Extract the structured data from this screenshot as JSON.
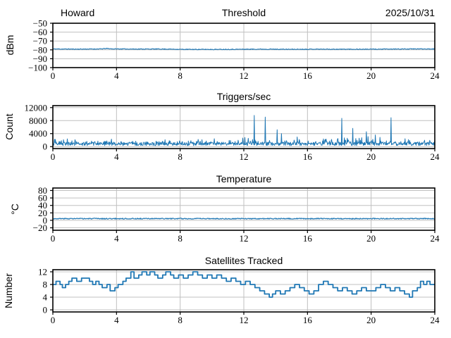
{
  "figure": {
    "background": "#ffffff",
    "line_color": "#1f77b4",
    "grid_color": "#c0c0c0",
    "spine_color": "#000000",
    "text_color": "#000000"
  },
  "header": {
    "left_label": "Howard",
    "center_title": "Threshold",
    "right_date": "2025/10/31"
  },
  "chart_data": [
    {
      "type": "line",
      "title": "Threshold",
      "title_left": "Howard",
      "title_right": "2025/10/31",
      "xlabel": "",
      "ylabel": "dBm",
      "xlim": [
        0,
        24
      ],
      "ylim": [
        -100,
        -50
      ],
      "xticks": [
        0,
        4,
        8,
        12,
        16,
        20,
        24
      ],
      "xticklabels": [
        "0",
        "4",
        "8",
        "12",
        "16",
        "20",
        "24"
      ],
      "yticks": [
        -50,
        -60,
        -70,
        -80,
        -90,
        -100
      ],
      "yticklabels": [
        "−50",
        "−60",
        "−70",
        "−80",
        "−90",
        "−100"
      ],
      "grid": true,
      "series": {
        "kind": "noisy-line",
        "description": "noise threshold hovering near -79 dBm all day",
        "noise_amplitude": 0.45,
        "baseline": [
          [
            0,
            -79.0
          ],
          [
            1.5,
            -79.2
          ],
          [
            3.0,
            -79.0
          ],
          [
            3.4,
            -78.5
          ],
          [
            3.7,
            -78.9
          ],
          [
            5,
            -79.1
          ],
          [
            7,
            -79.1
          ],
          [
            8.3,
            -79.5
          ],
          [
            10,
            -79.5
          ],
          [
            11.5,
            -79.4
          ],
          [
            13,
            -79.2
          ],
          [
            15,
            -79.4
          ],
          [
            16.5,
            -79.2
          ],
          [
            18,
            -79.3
          ],
          [
            19.5,
            -79.3
          ],
          [
            21,
            -79.2
          ],
          [
            22.5,
            -79.0
          ],
          [
            24,
            -78.9
          ]
        ]
      }
    },
    {
      "type": "line",
      "title": "Triggers/sec",
      "xlabel": "",
      "ylabel": "Count",
      "xlim": [
        0,
        24
      ],
      "ylim": [
        -600,
        12600
      ],
      "xticks": [
        0,
        4,
        8,
        12,
        16,
        20,
        24
      ],
      "xticklabels": [
        "0",
        "4",
        "8",
        "12",
        "16",
        "20",
        "24"
      ],
      "yticks": [
        0,
        4000,
        8000,
        12000
      ],
      "yticklabels": [
        "0",
        "4000",
        "8000",
        "12000"
      ],
      "grid": true,
      "series": {
        "kind": "noisy-bursty",
        "description": "trigger rate mostly 300-2500 counts with occasional bursts, busier after hour 11",
        "base_range": [
          300,
          1400
        ],
        "burst_probability": 0.3,
        "burst_extra_before_11h": 1700,
        "burst_extra_after_11h": 2500,
        "spikes": [
          [
            12.65,
            9600
          ],
          [
            13.35,
            9100
          ],
          [
            14.1,
            5200
          ],
          [
            14.35,
            4000
          ],
          [
            18.15,
            8700
          ],
          [
            18.85,
            5600
          ],
          [
            19.7,
            4600
          ],
          [
            21.25,
            8900
          ]
        ]
      }
    },
    {
      "type": "line",
      "title": "Temperature",
      "xlabel": "",
      "ylabel": "°C",
      "xlim": [
        0,
        24
      ],
      "ylim": [
        -26.6,
        86.6
      ],
      "xticks": [
        0,
        4,
        8,
        12,
        16,
        20,
        24
      ],
      "xticklabels": [
        "0",
        "4",
        "8",
        "12",
        "16",
        "20",
        "24"
      ],
      "yticks": [
        80,
        60,
        40,
        20,
        0,
        -20
      ],
      "yticklabels": [
        "80",
        "60",
        "40",
        "20",
        "0",
        "−20"
      ],
      "grid": true,
      "series": {
        "kind": "noisy-line",
        "description": "flat temperature around 4-5 °C all day",
        "noise_amplitude": 1.3,
        "baseline": [
          [
            0,
            4.5
          ],
          [
            24,
            4.5
          ]
        ]
      }
    },
    {
      "type": "step",
      "title": "Satellites Tracked",
      "xlabel": "",
      "ylabel": "Number",
      "xlim": [
        0,
        24
      ],
      "ylim": [
        -0.66,
        12.66
      ],
      "xticks": [
        0,
        4,
        8,
        12,
        16,
        20,
        24
      ],
      "xticklabels": [
        "0",
        "4",
        "8",
        "12",
        "16",
        "20",
        "24"
      ],
      "yticks": [
        0,
        4,
        8,
        12
      ],
      "yticklabels": [
        "0",
        "4",
        "8",
        "12"
      ],
      "grid": true,
      "series": {
        "kind": "step",
        "description": "satellite count 8-12 before noon, drops to 4-8 in afternoon, recovers near midnight",
        "points": [
          [
            0,
            8
          ],
          [
            0.2,
            9
          ],
          [
            0.45,
            8
          ],
          [
            0.6,
            7
          ],
          [
            0.8,
            8
          ],
          [
            1.0,
            9
          ],
          [
            1.2,
            10
          ],
          [
            1.5,
            9
          ],
          [
            1.8,
            10
          ],
          [
            2.1,
            10
          ],
          [
            2.3,
            9
          ],
          [
            2.5,
            8
          ],
          [
            2.7,
            9
          ],
          [
            2.9,
            8
          ],
          [
            3.1,
            7
          ],
          [
            3.4,
            8
          ],
          [
            3.6,
            6
          ],
          [
            3.9,
            7
          ],
          [
            4.1,
            8
          ],
          [
            4.4,
            9
          ],
          [
            4.6,
            10
          ],
          [
            4.9,
            12
          ],
          [
            5.1,
            10
          ],
          [
            5.4,
            11
          ],
          [
            5.6,
            12
          ],
          [
            5.9,
            11
          ],
          [
            6.1,
            12
          ],
          [
            6.4,
            11
          ],
          [
            6.6,
            10
          ],
          [
            6.9,
            11
          ],
          [
            7.1,
            12
          ],
          [
            7.4,
            11
          ],
          [
            7.6,
            10
          ],
          [
            7.9,
            11
          ],
          [
            8.2,
            10
          ],
          [
            8.5,
            11
          ],
          [
            8.8,
            12
          ],
          [
            9.1,
            11
          ],
          [
            9.4,
            10
          ],
          [
            9.7,
            11
          ],
          [
            10.0,
            10
          ],
          [
            10.3,
            11
          ],
          [
            10.6,
            10
          ],
          [
            10.9,
            9
          ],
          [
            11.2,
            10
          ],
          [
            11.5,
            9
          ],
          [
            11.8,
            8
          ],
          [
            12.1,
            9
          ],
          [
            12.4,
            8
          ],
          [
            12.7,
            7
          ],
          [
            13.0,
            6
          ],
          [
            13.3,
            5
          ],
          [
            13.6,
            4
          ],
          [
            13.8,
            5
          ],
          [
            14.0,
            6
          ],
          [
            14.3,
            5
          ],
          [
            14.6,
            6
          ],
          [
            14.9,
            7
          ],
          [
            15.2,
            8
          ],
          [
            15.5,
            7
          ],
          [
            15.8,
            6
          ],
          [
            16.1,
            5
          ],
          [
            16.4,
            6
          ],
          [
            16.7,
            8
          ],
          [
            17.0,
            9
          ],
          [
            17.3,
            8
          ],
          [
            17.6,
            7
          ],
          [
            17.9,
            6
          ],
          [
            18.2,
            7
          ],
          [
            18.5,
            6
          ],
          [
            18.8,
            5
          ],
          [
            19.1,
            6
          ],
          [
            19.4,
            7
          ],
          [
            19.7,
            6
          ],
          [
            20.0,
            6
          ],
          [
            20.3,
            7
          ],
          [
            20.6,
            8
          ],
          [
            20.9,
            7
          ],
          [
            21.2,
            6
          ],
          [
            21.5,
            7
          ],
          [
            21.8,
            6
          ],
          [
            22.1,
            5
          ],
          [
            22.4,
            4
          ],
          [
            22.6,
            6
          ],
          [
            22.9,
            7
          ],
          [
            23.1,
            9
          ],
          [
            23.3,
            8
          ],
          [
            23.5,
            9
          ],
          [
            23.7,
            8
          ],
          [
            24,
            8
          ]
        ]
      }
    }
  ]
}
